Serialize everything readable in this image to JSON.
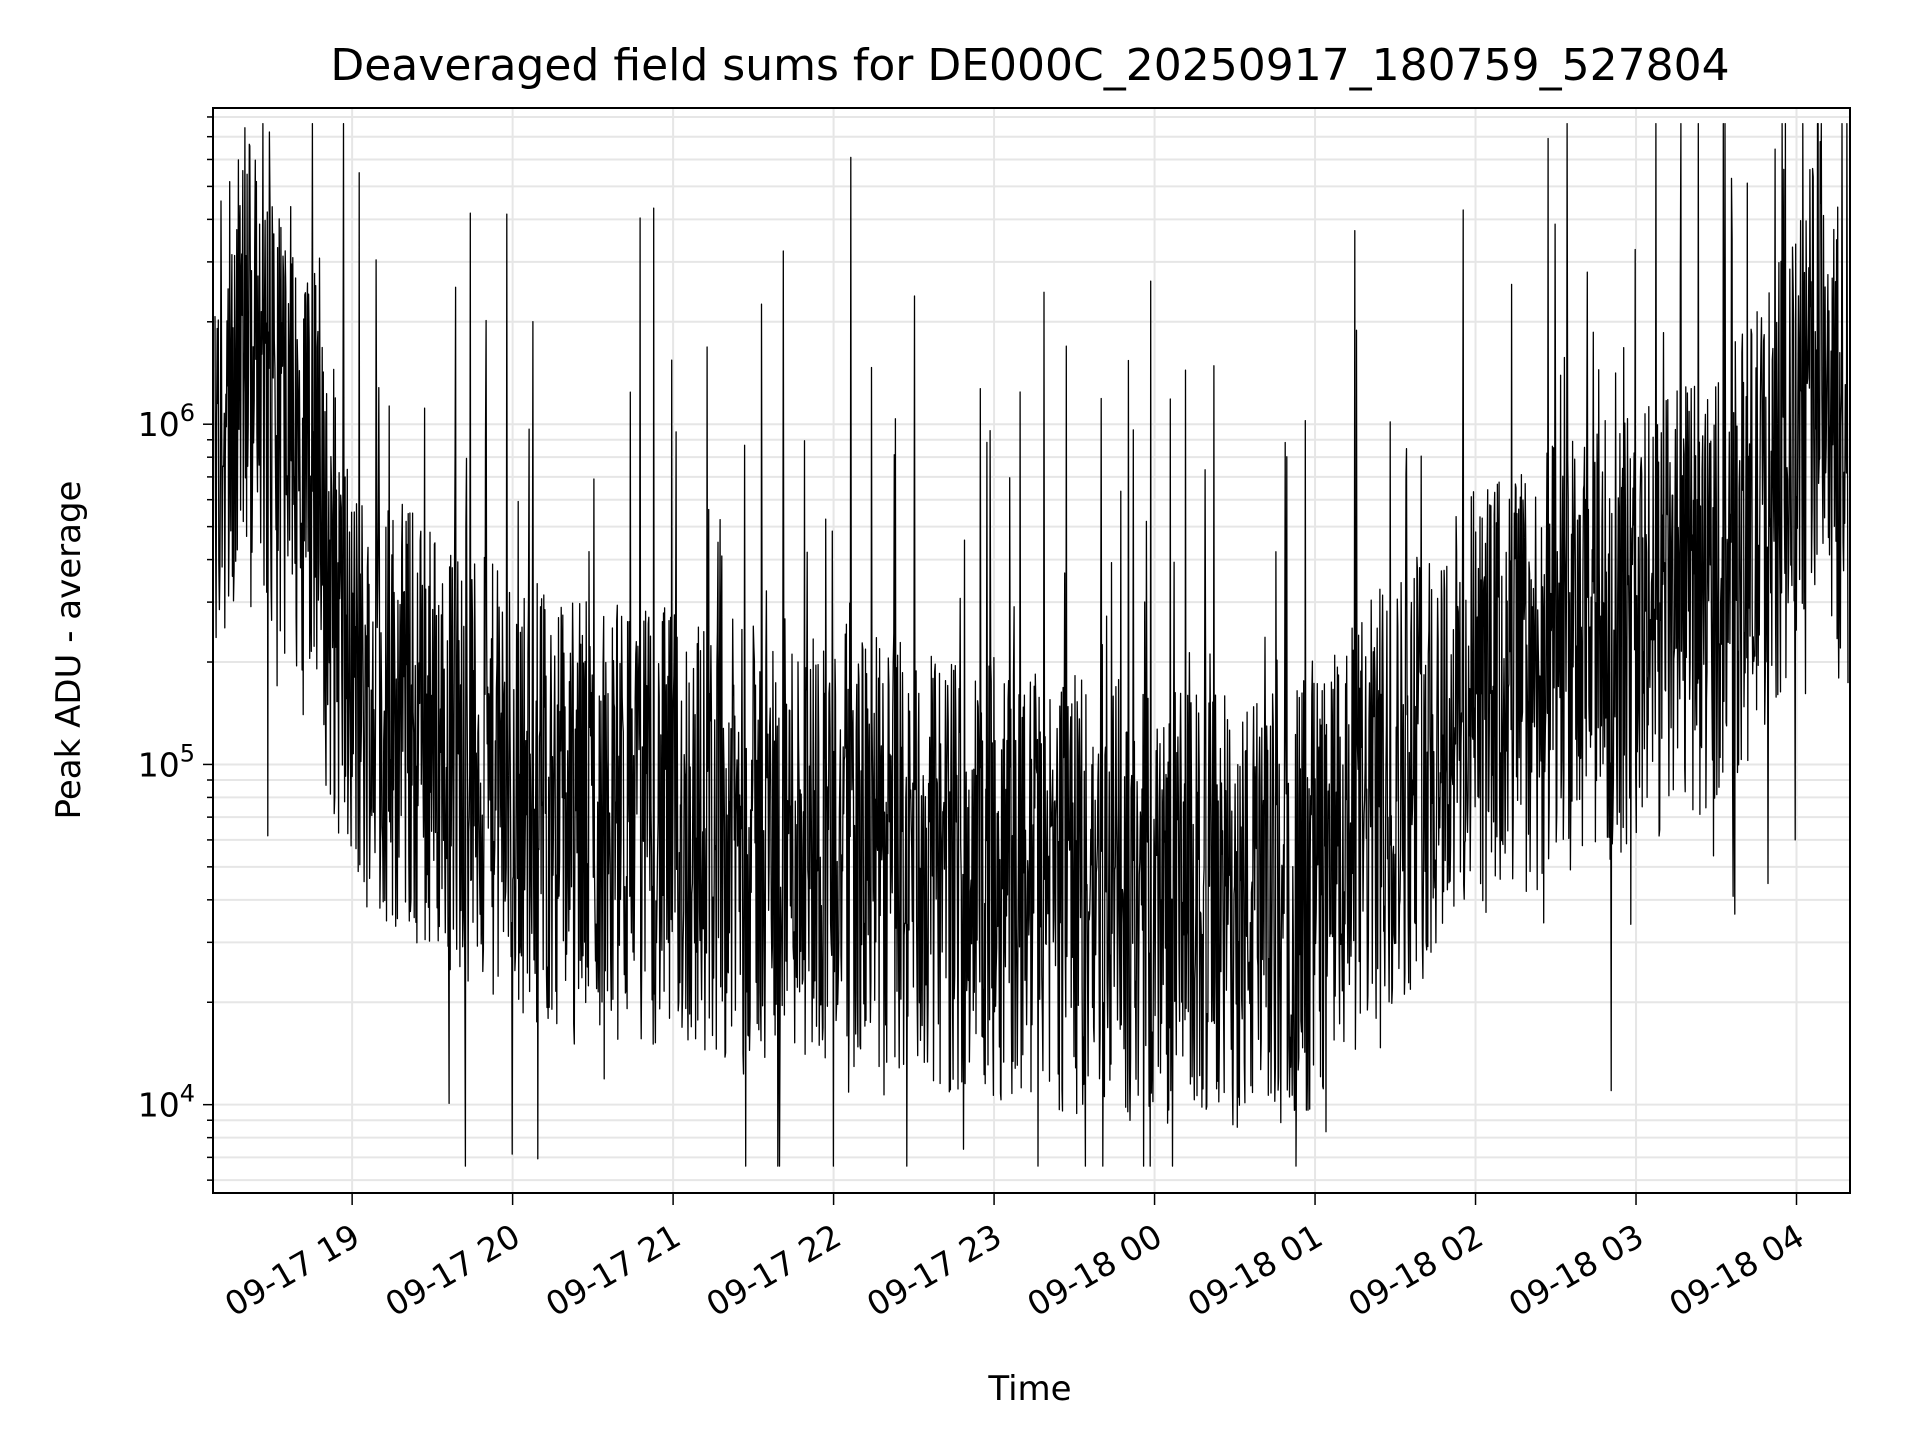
{
  "chart_data": {
    "type": "line",
    "title": "Deaveraged field sums for DE000C_20250917_180759_527804",
    "xlabel": "Time",
    "ylabel": "Peak ADU - average",
    "y_scale": "log",
    "ylim": [
      5500,
      8500000
    ],
    "x_tick_labels": [
      "09-17 19",
      "09-17 20",
      "09-17 21",
      "09-17 22",
      "09-17 23",
      "09-18 00",
      "09-18 01",
      "09-18 02",
      "09-18 03",
      "09-18 04"
    ],
    "y_tick_labels": [
      {
        "base": "10",
        "exp": "4",
        "value": 10000
      },
      {
        "base": "10",
        "exp": "5",
        "value": 100000
      },
      {
        "base": "10",
        "exp": "6",
        "value": 1000000
      }
    ],
    "grid": true,
    "line_color": "#000000",
    "grid_color": "#e6e6e6",
    "series": [
      {
        "x": [
          "2025-09-17 18:08",
          "2025-09-17 18:15",
          "2025-09-17 18:20",
          "2025-09-17 18:25",
          "2025-09-17 18:30",
          "2025-09-17 18:40",
          "2025-09-17 18:50",
          "2025-09-17 19:00",
          "2025-09-17 19:10",
          "2025-09-17 19:20",
          "2025-09-17 19:30",
          "2025-09-17 19:40",
          "2025-09-17 19:50",
          "2025-09-17 20:00",
          "2025-09-17 20:10",
          "2025-09-17 20:20",
          "2025-09-17 20:30",
          "2025-09-17 20:40",
          "2025-09-17 20:50",
          "2025-09-17 21:00",
          "2025-09-17 21:10",
          "2025-09-17 21:20",
          "2025-09-17 21:30",
          "2025-09-17 21:40",
          "2025-09-17 21:50",
          "2025-09-17 22:00",
          "2025-09-17 22:10",
          "2025-09-17 22:20",
          "2025-09-17 22:30",
          "2025-09-17 22:40",
          "2025-09-17 22:50",
          "2025-09-17 23:00",
          "2025-09-17 23:10",
          "2025-09-17 23:20",
          "2025-09-17 23:30",
          "2025-09-17 23:40",
          "2025-09-17 23:50",
          "2025-09-18 00:00",
          "2025-09-18 00:10",
          "2025-09-18 00:20",
          "2025-09-18 00:30",
          "2025-09-18 00:40",
          "2025-09-18 00:50",
          "2025-09-18 01:00",
          "2025-09-18 01:10",
          "2025-09-18 01:20",
          "2025-09-18 01:30",
          "2025-09-18 01:40",
          "2025-09-18 01:50",
          "2025-09-18 02:00",
          "2025-09-18 02:10",
          "2025-09-18 02:20",
          "2025-09-18 02:30",
          "2025-09-18 02:40",
          "2025-09-18 02:50",
          "2025-09-18 03:00",
          "2025-09-18 03:10",
          "2025-09-18 03:20",
          "2025-09-18 03:30",
          "2025-09-18 03:40",
          "2025-09-18 03:50",
          "2025-09-18 04:00",
          "2025-09-18 04:05",
          "2025-09-18 04:10",
          "2025-09-18 04:15",
          "2025-09-18 04:20"
        ],
        "values": [
          700000,
          1500000,
          2000000,
          1800000,
          1300000,
          900000,
          450000,
          200000,
          170000,
          160000,
          140000,
          120000,
          105000,
          95000,
          90000,
          85000,
          80000,
          80000,
          78000,
          75000,
          72000,
          70000,
          68000,
          70000,
          72000,
          70000,
          65000,
          60000,
          58000,
          56000,
          55000,
          54000,
          52000,
          50000,
          48000,
          47000,
          46000,
          45000,
          44000,
          44000,
          43000,
          42000,
          45000,
          50000,
          60000,
          80000,
          100000,
          120000,
          150000,
          170000,
          190000,
          210000,
          230000,
          250000,
          270000,
          300000,
          320000,
          350000,
          400000,
          500000,
          700000,
          1000000,
          1500000,
          2000000,
          1000000,
          400000
        ]
      }
    ]
  }
}
